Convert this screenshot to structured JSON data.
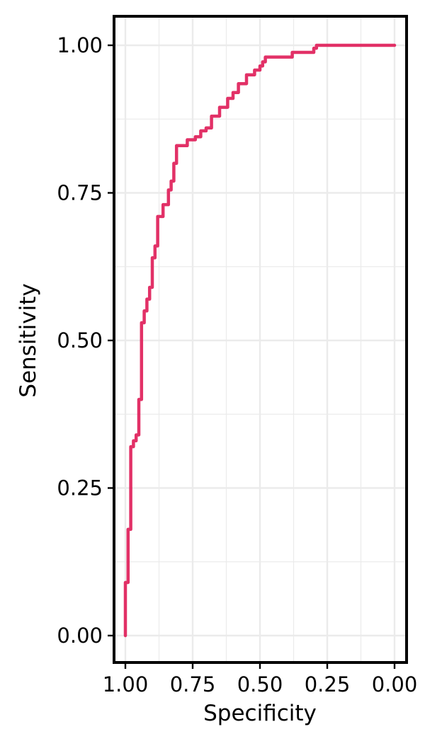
{
  "chart_data": {
    "type": "line",
    "title": "",
    "xlabel": "Specificity",
    "ylabel": "Sensitivity",
    "xlim": [
      1.0,
      0.0
    ],
    "ylim": [
      0.0,
      1.0
    ],
    "x_reversed": true,
    "grid": true,
    "legend": "none",
    "x_ticks": [
      {
        "value": 1.0,
        "label": "1.00"
      },
      {
        "value": 0.75,
        "label": "0.75"
      },
      {
        "value": 0.5,
        "label": "0.50"
      },
      {
        "value": 0.25,
        "label": "0.25"
      },
      {
        "value": 0.0,
        "label": "0.00"
      }
    ],
    "y_ticks": [
      {
        "value": 0.0,
        "label": "0.00"
      },
      {
        "value": 0.25,
        "label": "0.25"
      },
      {
        "value": 0.5,
        "label": "0.50"
      },
      {
        "value": 0.75,
        "label": "0.75"
      },
      {
        "value": 1.0,
        "label": "1.00"
      }
    ],
    "colors": {
      "line": "#e0205a",
      "grid": "#ebebeb",
      "frame": "#000000"
    },
    "series": [
      {
        "points": [
          [
            1.0,
            0.0
          ],
          [
            1.0,
            0.09
          ],
          [
            0.99,
            0.09
          ],
          [
            0.99,
            0.18
          ],
          [
            0.98,
            0.18
          ],
          [
            0.98,
            0.32
          ],
          [
            0.97,
            0.32
          ],
          [
            0.97,
            0.33
          ],
          [
            0.96,
            0.33
          ],
          [
            0.96,
            0.34
          ],
          [
            0.95,
            0.34
          ],
          [
            0.95,
            0.4
          ],
          [
            0.94,
            0.4
          ],
          [
            0.94,
            0.53
          ],
          [
            0.93,
            0.53
          ],
          [
            0.93,
            0.55
          ],
          [
            0.92,
            0.55
          ],
          [
            0.92,
            0.57
          ],
          [
            0.91,
            0.57
          ],
          [
            0.91,
            0.59
          ],
          [
            0.9,
            0.59
          ],
          [
            0.9,
            0.64
          ],
          [
            0.89,
            0.64
          ],
          [
            0.89,
            0.66
          ],
          [
            0.88,
            0.66
          ],
          [
            0.88,
            0.71
          ],
          [
            0.86,
            0.71
          ],
          [
            0.86,
            0.73
          ],
          [
            0.84,
            0.73
          ],
          [
            0.84,
            0.755
          ],
          [
            0.83,
            0.755
          ],
          [
            0.83,
            0.77
          ],
          [
            0.82,
            0.77
          ],
          [
            0.82,
            0.8
          ],
          [
            0.81,
            0.8
          ],
          [
            0.81,
            0.83
          ],
          [
            0.77,
            0.83
          ],
          [
            0.77,
            0.84
          ],
          [
            0.74,
            0.84
          ],
          [
            0.74,
            0.845
          ],
          [
            0.72,
            0.845
          ],
          [
            0.72,
            0.855
          ],
          [
            0.7,
            0.855
          ],
          [
            0.7,
            0.86
          ],
          [
            0.68,
            0.86
          ],
          [
            0.68,
            0.88
          ],
          [
            0.65,
            0.88
          ],
          [
            0.65,
            0.895
          ],
          [
            0.62,
            0.895
          ],
          [
            0.62,
            0.91
          ],
          [
            0.6,
            0.91
          ],
          [
            0.6,
            0.92
          ],
          [
            0.58,
            0.92
          ],
          [
            0.58,
            0.935
          ],
          [
            0.55,
            0.935
          ],
          [
            0.55,
            0.95
          ],
          [
            0.52,
            0.95
          ],
          [
            0.52,
            0.958
          ],
          [
            0.5,
            0.958
          ],
          [
            0.5,
            0.965
          ],
          [
            0.49,
            0.965
          ],
          [
            0.49,
            0.972
          ],
          [
            0.48,
            0.972
          ],
          [
            0.48,
            0.98
          ],
          [
            0.38,
            0.98
          ],
          [
            0.38,
            0.988
          ],
          [
            0.3,
            0.988
          ],
          [
            0.3,
            0.995
          ],
          [
            0.29,
            0.995
          ],
          [
            0.29,
            1.0
          ],
          [
            0.0,
            1.0
          ]
        ]
      }
    ]
  }
}
